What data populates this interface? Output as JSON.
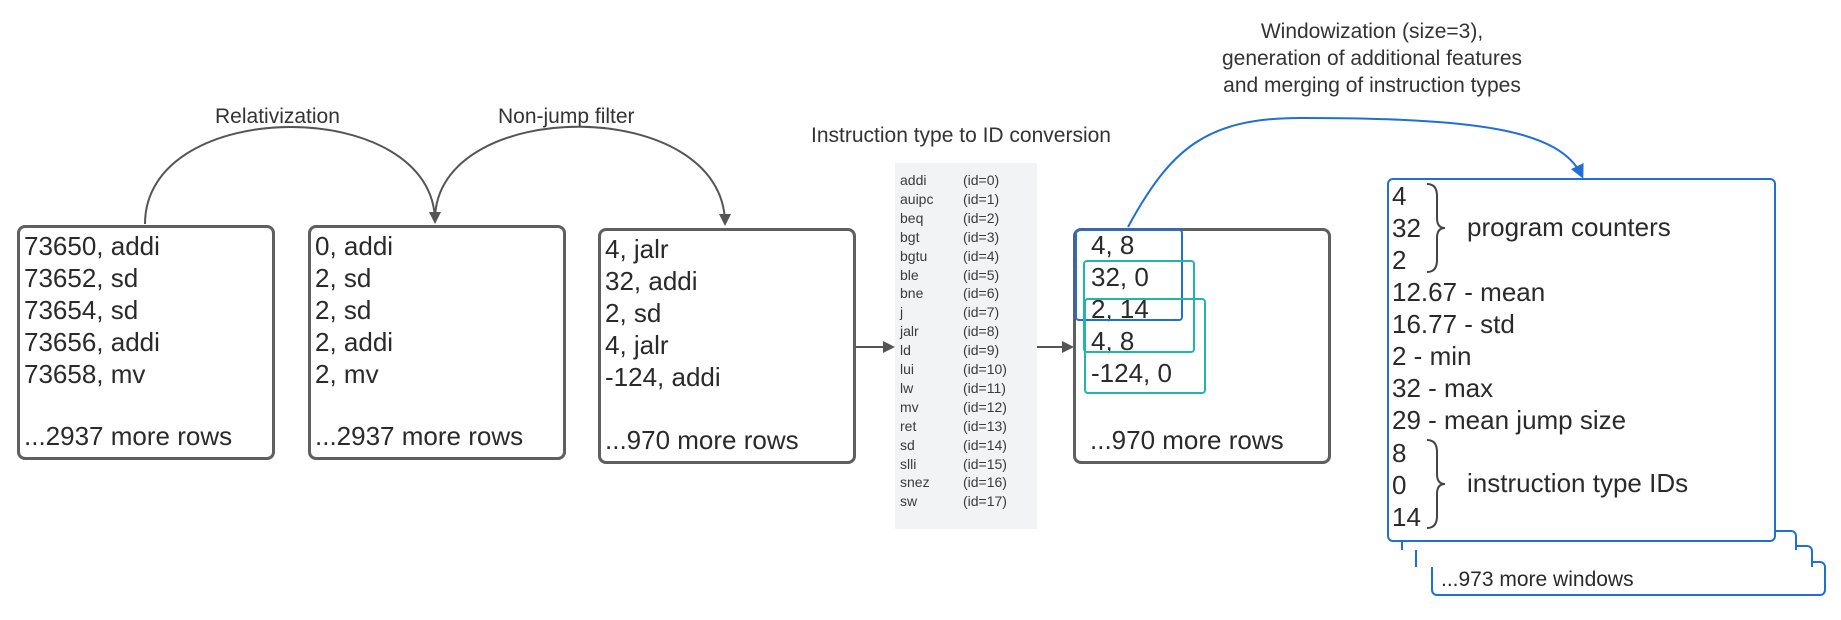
{
  "stages": {
    "relativization_label": "Relativization",
    "nonjump_label": "Non-jump filter",
    "conversion_label": "Instruction type to ID conversion",
    "windowization_label": [
      "Windowization (size=3),",
      "generation of additional features",
      "and merging of instruction types"
    ]
  },
  "table_raw": {
    "rows": [
      "73650, addi",
      "73652, sd",
      "73654, sd",
      "73656, addi",
      "73658, mv"
    ],
    "more": "...2937 more rows"
  },
  "table_relative": {
    "rows": [
      "0, addi",
      "2, sd",
      "2, sd",
      "2, addi",
      "2, mv"
    ],
    "more": "...2937 more rows"
  },
  "table_filtered": {
    "rows": [
      "4, jalr",
      "32, addi",
      "2, sd",
      "4, jalr",
      "-124, addi"
    ],
    "more": "...970 more rows"
  },
  "id_legend": [
    {
      "name": "addi",
      "id": "(id=0)"
    },
    {
      "name": "auipc",
      "id": "(id=1)"
    },
    {
      "name": "beq",
      "id": "(id=2)"
    },
    {
      "name": "bgt",
      "id": "(id=3)"
    },
    {
      "name": "bgtu",
      "id": "(id=4)"
    },
    {
      "name": "ble",
      "id": "(id=5)"
    },
    {
      "name": "bne",
      "id": "(id=6)"
    },
    {
      "name": "j",
      "id": "(id=7)"
    },
    {
      "name": "jalr",
      "id": "(id=8)"
    },
    {
      "name": "ld",
      "id": "(id=9)"
    },
    {
      "name": "lui",
      "id": "(id=10)"
    },
    {
      "name": "lw",
      "id": "(id=11)"
    },
    {
      "name": "mv",
      "id": "(id=12)"
    },
    {
      "name": "ret",
      "id": "(id=13)"
    },
    {
      "name": "sd",
      "id": "(id=14)"
    },
    {
      "name": "slli",
      "id": "(id=15)"
    },
    {
      "name": "snez",
      "id": "(id=16)"
    },
    {
      "name": "sw",
      "id": "(id=17)"
    }
  ],
  "table_ids": {
    "rows": [
      "4, 8",
      "32, 0",
      "2, 14",
      "4, 8",
      "-124, 0"
    ],
    "more": "...970 more rows"
  },
  "window": {
    "program_counters": [
      "4",
      "32",
      "2"
    ],
    "program_counters_label": "program counters",
    "features": [
      "12.67 - mean",
      "16.77 - std",
      "2 - min",
      "32 - max",
      "29 - mean jump size"
    ],
    "instruction_ids": [
      "8",
      "0",
      "14"
    ],
    "instruction_ids_label": "instruction type IDs",
    "more": "...973 more windows"
  },
  "colors": {
    "box_border": "#5f5f5f",
    "window_blue": "#1f6fd6",
    "window_teal": "#1fb8a6",
    "legend_bg": "#f2f3f5",
    "arrow": "#555555"
  }
}
